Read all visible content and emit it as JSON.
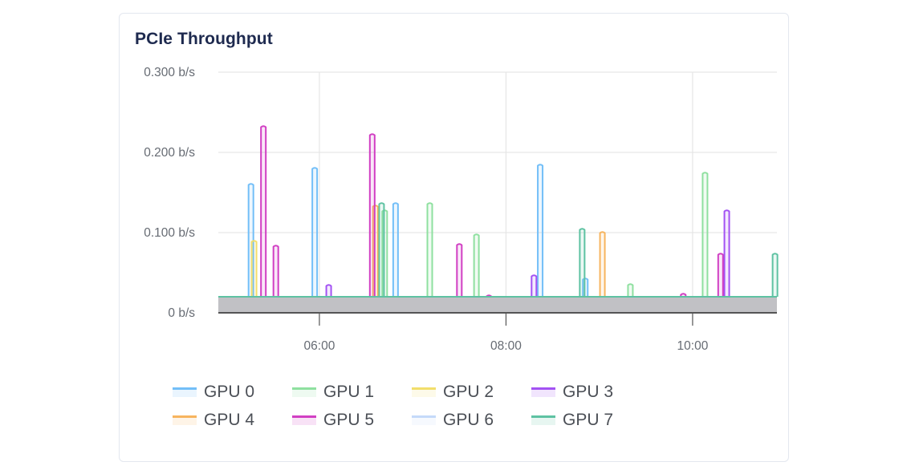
{
  "panel": {
    "title": "PCIe Throughput"
  },
  "chart_data": {
    "type": "bar",
    "title": "PCIe Throughput",
    "xlabel": "",
    "ylabel": "",
    "unit": "b/s",
    "ylim": [
      0,
      0.3
    ],
    "xlim": [
      "04:55",
      "10:54"
    ],
    "grid": true,
    "legend_position": "bottom",
    "y_ticks": [
      "0 b/s",
      "0.100 b/s",
      "0.200 b/s",
      "0.300 b/s"
    ],
    "x_ticks": [
      "06:00",
      "08:00",
      "10:00"
    ],
    "baseline_value": 0.02,
    "series": [
      {
        "name": "GPU 0",
        "color": "#73bff8",
        "points": [
          [
            "05:16",
            0.161
          ],
          [
            "05:57",
            0.181
          ],
          [
            "06:49",
            0.137
          ],
          [
            "08:22",
            0.185
          ],
          [
            "08:51",
            0.043
          ]
        ]
      },
      {
        "name": "GPU 1",
        "color": "#8fe0a0",
        "points": [
          [
            "06:42",
            0.128
          ],
          [
            "07:11",
            0.137
          ],
          [
            "07:41",
            0.098
          ],
          [
            "09:20",
            0.036
          ],
          [
            "10:08",
            0.175
          ]
        ]
      },
      {
        "name": "GPU 2",
        "color": "#f2de6b",
        "points": [
          [
            "05:18",
            0.09
          ]
        ]
      },
      {
        "name": "GPU 3",
        "color": "#a352f3",
        "points": [
          [
            "06:06",
            0.035
          ],
          [
            "08:18",
            0.047
          ],
          [
            "10:22",
            0.128
          ]
        ]
      },
      {
        "name": "GPU 4",
        "color": "#f7b45e",
        "points": [
          [
            "06:36",
            0.134
          ],
          [
            "09:02",
            0.101
          ]
        ]
      },
      {
        "name": "GPU 5",
        "color": "#d13fc3",
        "points": [
          [
            "05:24",
            0.233
          ],
          [
            "05:32",
            0.084
          ],
          [
            "06:34",
            0.223
          ],
          [
            "07:30",
            0.086
          ],
          [
            "07:49",
            0.022
          ],
          [
            "09:54",
            0.024
          ],
          [
            "10:18",
            0.074
          ]
        ]
      },
      {
        "name": "GPU 6",
        "color": "#c5daf9",
        "points": []
      },
      {
        "name": "GPU 7",
        "color": "#5ec2a2",
        "points": [
          [
            "06:40",
            0.137
          ],
          [
            "08:49",
            0.105
          ],
          [
            "10:53",
            0.074
          ]
        ]
      }
    ]
  },
  "legend": [
    {
      "label": "GPU 0",
      "color": "#73bff8"
    },
    {
      "label": "GPU 1",
      "color": "#8fe0a0"
    },
    {
      "label": "GPU 2",
      "color": "#f2de6b"
    },
    {
      "label": "GPU 3",
      "color": "#a352f3"
    },
    {
      "label": "GPU 4",
      "color": "#f7b45e"
    },
    {
      "label": "GPU 5",
      "color": "#d13fc3"
    },
    {
      "label": "GPU 6",
      "color": "#c5daf9"
    },
    {
      "label": "GPU 7",
      "color": "#5ec2a2"
    }
  ]
}
